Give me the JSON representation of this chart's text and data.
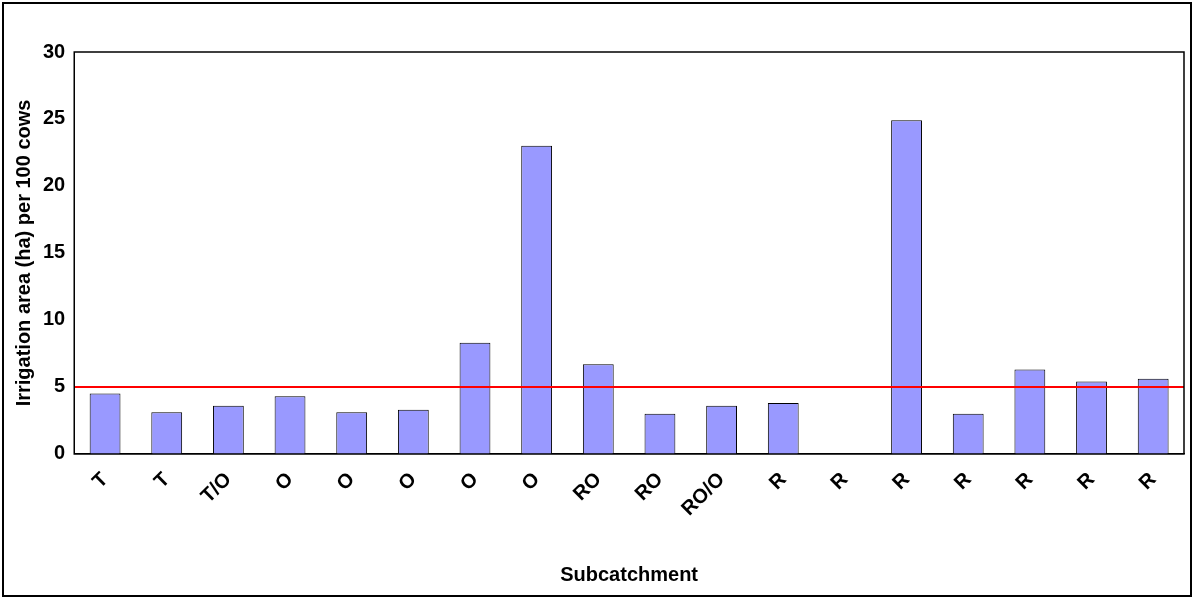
{
  "chart_data": {
    "type": "bar",
    "xlabel": "Subcatchment",
    "ylabel": "Irrigation area (ha) per 100 cows",
    "categories": [
      "T",
      "T",
      "T/O",
      "O",
      "O",
      "O",
      "O",
      "O",
      "RO",
      "RO",
      "RO/O",
      "R",
      "R",
      "R",
      "R",
      "R",
      "R",
      "R"
    ],
    "values": [
      4.5,
      3.1,
      3.6,
      4.3,
      3.1,
      3.3,
      8.3,
      23.0,
      6.7,
      3.0,
      3.6,
      3.8,
      0,
      24.9,
      3.0,
      6.3,
      5.4,
      5.6
    ],
    "color": "#9999ff",
    "ylim": [
      0,
      30
    ],
    "yticks": [
      0,
      5,
      10,
      15,
      20,
      25,
      30
    ],
    "grid": false,
    "legend": false,
    "ref_lines": [
      {
        "axis": "y",
        "value": 5,
        "color": "#ff0000"
      }
    ]
  }
}
